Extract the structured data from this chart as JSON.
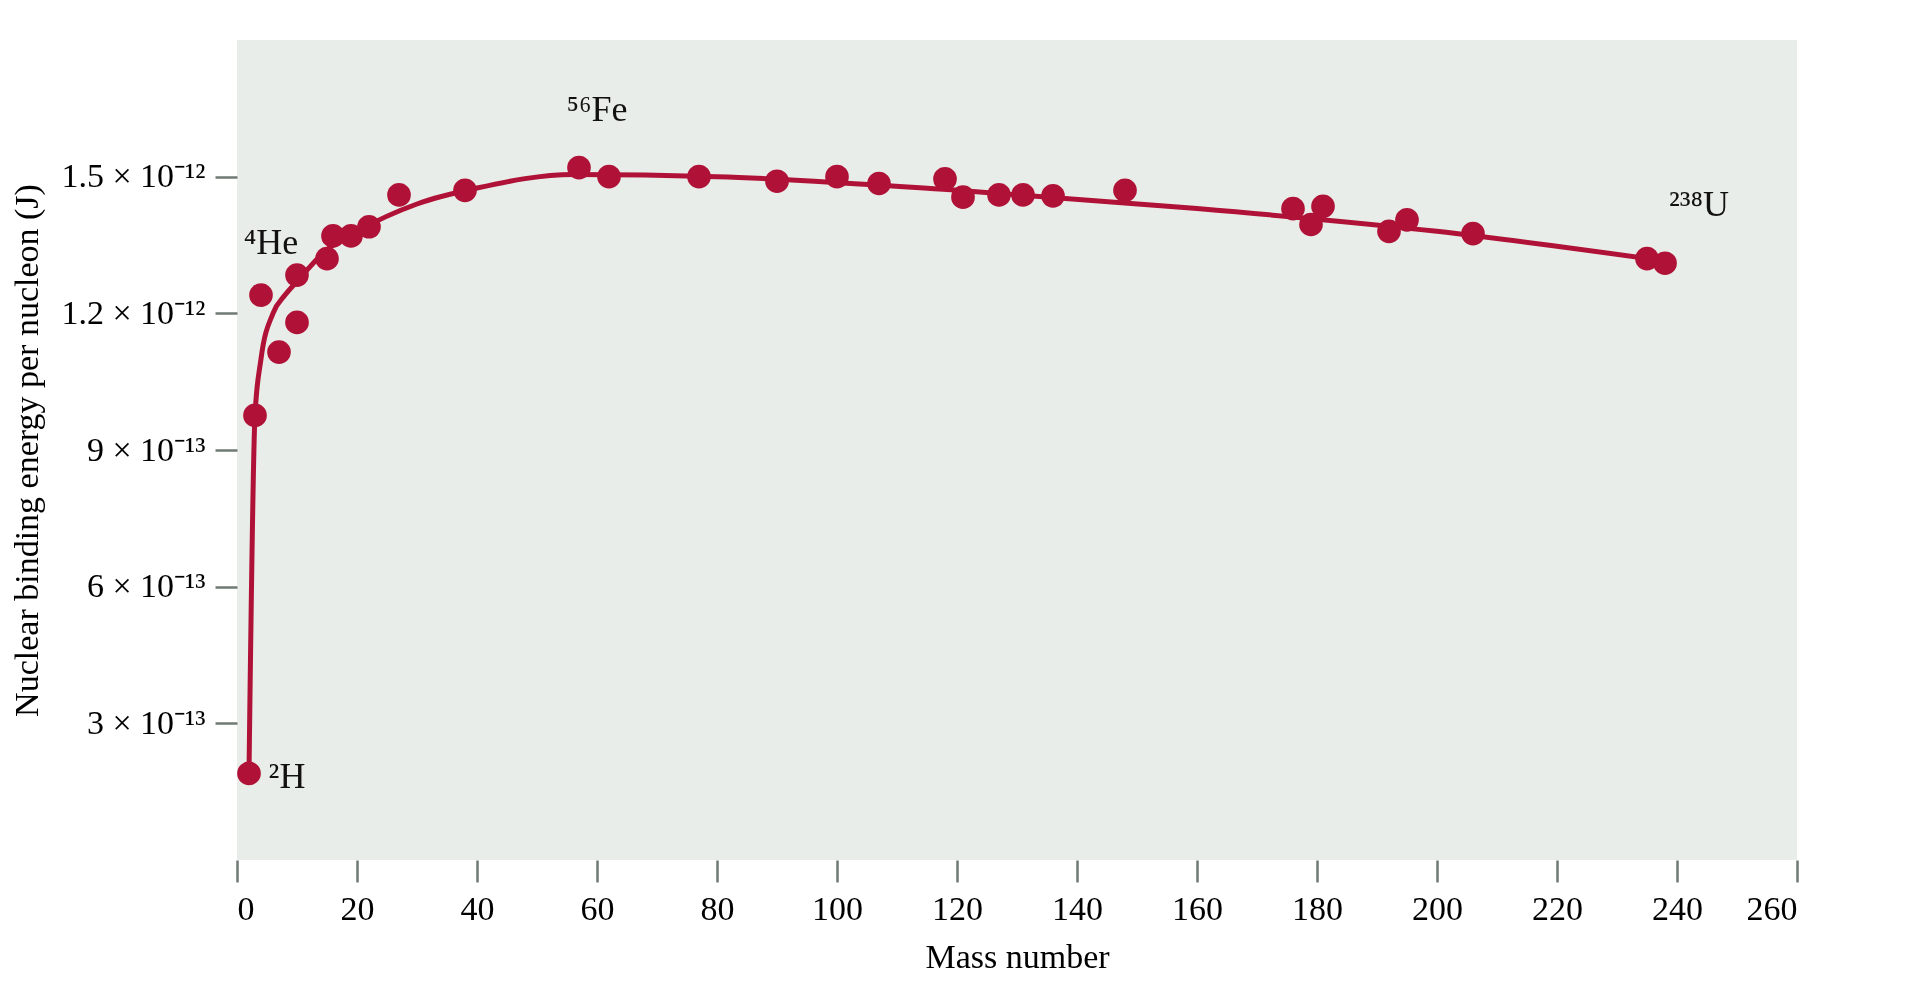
{
  "chart_data": {
    "type": "scatter",
    "xlabel": "Mass number",
    "ylabel": "Nuclear binding energy per nucleon (J)",
    "xlim": [
      0,
      260
    ],
    "xticks": [
      0,
      20,
      40,
      60,
      80,
      100,
      120,
      140,
      160,
      180,
      200,
      220,
      240,
      260
    ],
    "ylim": [
      0,
      1.8e-12
    ],
    "yticks": [
      {
        "value": 3e-13,
        "label": "3 × 10⁻¹³"
      },
      {
        "value": 6e-13,
        "label": "6 × 10⁻¹³"
      },
      {
        "value": 9e-13,
        "label": "9 × 10⁻¹³"
      },
      {
        "value": 1.2e-12,
        "label": "1.2 × 10⁻¹²"
      },
      {
        "value": 1.5e-12,
        "label": "1.5 × 10⁻¹²"
      }
    ],
    "grid": false,
    "legend": false,
    "marker": "circle",
    "series": [
      {
        "type": "scatter",
        "color": "#b01237",
        "x": [
          2,
          3,
          4,
          7,
          10,
          10,
          15,
          16,
          19,
          22,
          27,
          38,
          57,
          62,
          77,
          90,
          100,
          107,
          118,
          121,
          127,
          131,
          136,
          148,
          176,
          179,
          181,
          192,
          195,
          206,
          235,
          238
        ],
        "values": [
          1.9e-13,
          9.76e-13,
          1.24e-12,
          1.115e-12,
          1.18e-12,
          1.284e-12,
          1.32e-12,
          1.37e-12,
          1.37e-12,
          1.39e-12,
          1.46e-12,
          1.47e-12,
          1.52e-12,
          1.5e-12,
          1.5e-12,
          1.49e-12,
          1.5e-12,
          1.485e-12,
          1.495e-12,
          1.455e-12,
          1.46e-12,
          1.46e-12,
          1.458e-12,
          1.47e-12,
          1.43e-12,
          1.395e-12,
          1.435e-12,
          1.38e-12,
          1.405e-12,
          1.375e-12,
          1.32e-12,
          1.31e-12
        ]
      },
      {
        "type": "line",
        "color": "#b01237",
        "marker": "none",
        "x": [
          2,
          3,
          4,
          6,
          8,
          10,
          15,
          20,
          30,
          40,
          56,
          80,
          120,
          160,
          200,
          238
        ],
        "values": [
          1.9e-13,
          9.76e-13,
          1.1e-12,
          1.2e-12,
          1.24e-12,
          1.27e-12,
          1.34e-12,
          1.38e-12,
          1.44e-12,
          1.475e-12,
          1.505e-12,
          1.5e-12,
          1.47e-12,
          1.43e-12,
          1.38e-12,
          1.315e-12
        ]
      }
    ],
    "annotations": [
      {
        "text": "²H",
        "x": 2,
        "y": 1.9e-13
      },
      {
        "text": "⁴He",
        "x": 4,
        "y": 1.24e-12
      },
      {
        "text": "⁵⁶Fe",
        "x": 57,
        "y": 1.52e-12
      },
      {
        "text": "²³⁸U",
        "x": 238,
        "y": 1.31e-12
      }
    ]
  }
}
